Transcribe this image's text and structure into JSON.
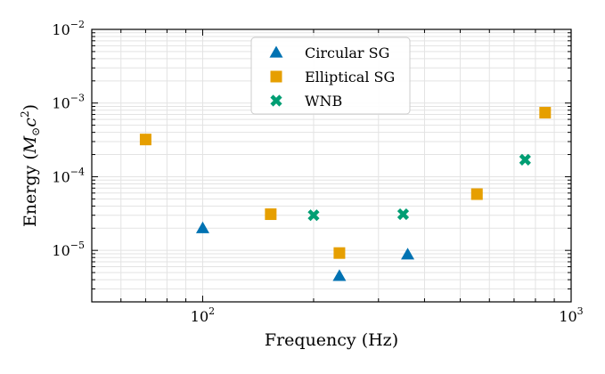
{
  "chart_data": {
    "type": "scatter",
    "xscale": "log",
    "yscale": "log",
    "xlim": [
      50,
      1000
    ],
    "ylim": [
      2e-06,
      0.01
    ],
    "xlabel": "Frequency (Hz)",
    "ylabel": "Energy (M⊙c²)",
    "ylabel_parts": {
      "prefix": "Energy (",
      "m": "M",
      "sub": "⊙",
      "c": "c",
      "sup": "2",
      "suffix": ")"
    },
    "grid": true,
    "legend_location": "top-center",
    "x_ticks": [
      {
        "value": 100,
        "base": "10",
        "exp": "2"
      },
      {
        "value": 1000,
        "base": "10",
        "exp": "3"
      }
    ],
    "y_ticks": [
      {
        "value": 1e-05,
        "base": "10",
        "exp": "−5"
      },
      {
        "value": 0.0001,
        "base": "10",
        "exp": "−4"
      },
      {
        "value": 0.001,
        "base": "10",
        "exp": "−3"
      },
      {
        "value": 0.01,
        "base": "10",
        "exp": "−2"
      }
    ],
    "series": [
      {
        "name": "Circular SG",
        "marker": "triangle",
        "color": "#0072B2",
        "points": [
          [
            100,
            2e-05
          ],
          [
            235,
            4.5e-06
          ],
          [
            360,
            8.8e-06
          ]
        ]
      },
      {
        "name": "Elliptical SG",
        "marker": "square",
        "color": "#E69F00",
        "points": [
          [
            70,
            0.00032
          ],
          [
            153,
            3.1e-05
          ],
          [
            235,
            9.2e-06
          ],
          [
            555,
            5.8e-05
          ],
          [
            850,
            0.00074
          ]
        ]
      },
      {
        "name": "WNB",
        "marker": "x",
        "color": "#009E73",
        "points": [
          [
            200,
            3e-05
          ],
          [
            350,
            3.1e-05
          ],
          [
            750,
            0.00017
          ]
        ]
      }
    ]
  }
}
